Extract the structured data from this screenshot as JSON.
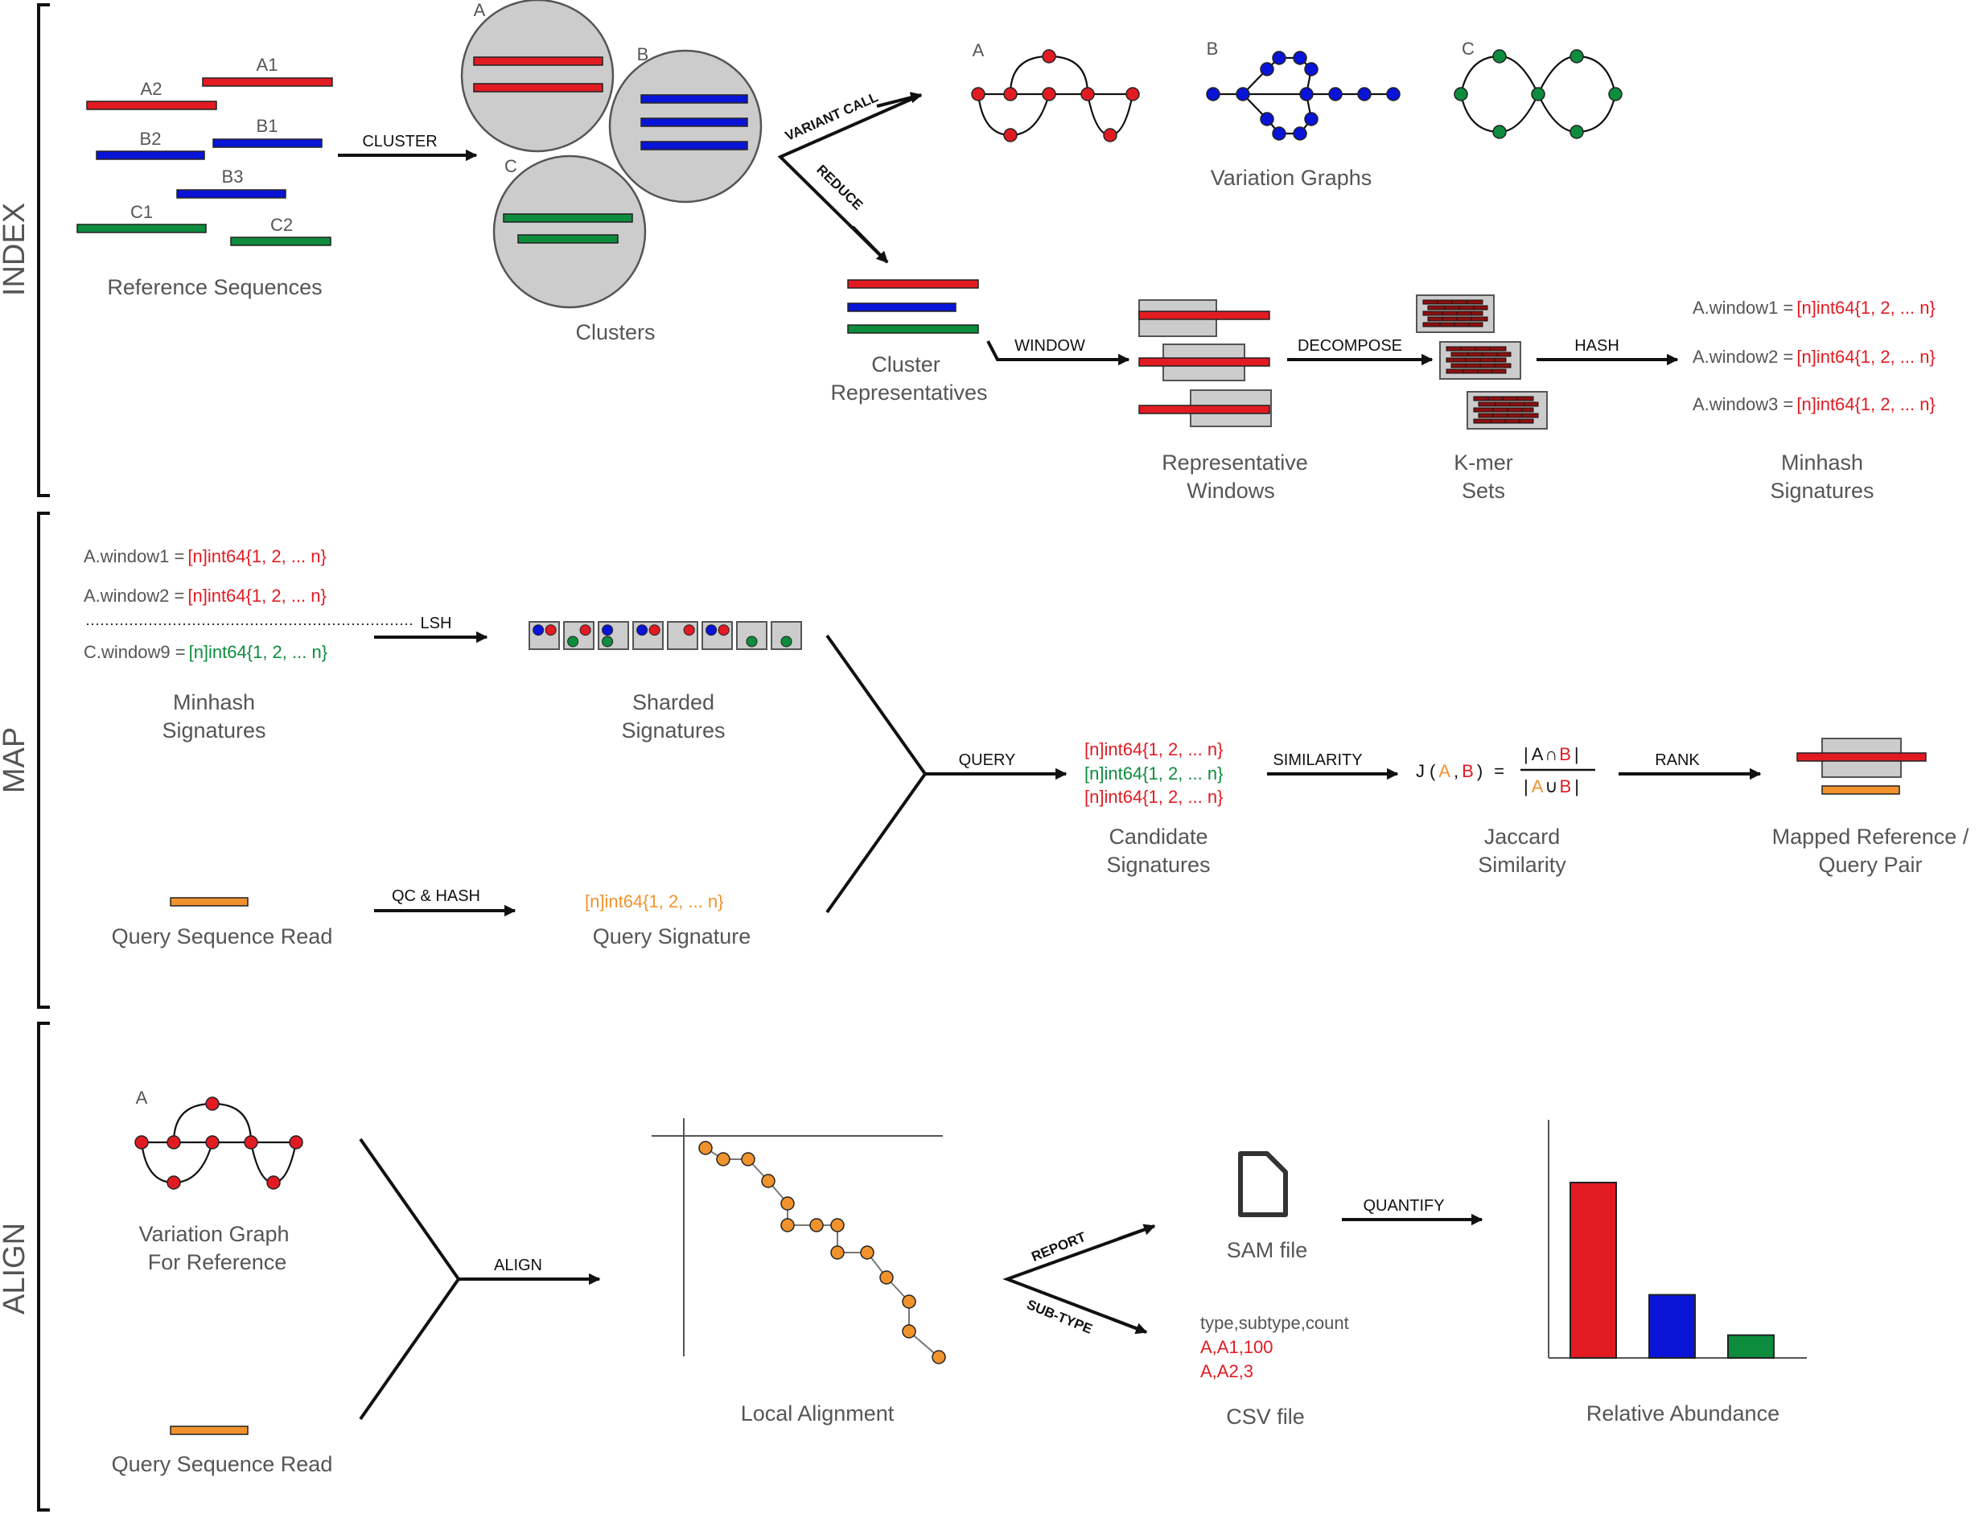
{
  "colors": {
    "red": "#e21b23",
    "blue": "#0a14d6",
    "green": "#0d8c3d",
    "orange": "#f0932d",
    "gray": "#cccccc",
    "darkred": "#8b1010",
    "text": "#555555",
    "black": "#111111"
  },
  "sections": {
    "index": "INDEX",
    "map": "MAP",
    "align": "ALIGN"
  },
  "index": {
    "ref_labels": {
      "a1": "A1",
      "a2": "A2",
      "b1": "B1",
      "b2": "B2",
      "b3": "B3",
      "c1": "C1",
      "c2": "C2"
    },
    "ref_caption": "Reference Sequences",
    "cluster_op": "CLUSTER",
    "cluster_labels": {
      "a": "A",
      "b": "B",
      "c": "C"
    },
    "clusters_caption": "Clusters",
    "variant_call_op": "VARIANT CALL",
    "reduce_op": "REDUCE",
    "graph_labels": {
      "a": "A",
      "b": "B",
      "c": "C"
    },
    "graphs_caption": "Variation Graphs",
    "reps_caption": [
      "Cluster",
      "Representatives"
    ],
    "window_op": "WINDOW",
    "windows_caption": [
      "Representative",
      "Windows"
    ],
    "decompose_op": "DECOMPOSE",
    "kmer_caption": [
      "K-mer",
      "Sets"
    ],
    "hash_op": "HASH",
    "signatures": [
      {
        "name": "A.window1 =",
        "value": "[n]int64{1, 2, ... n}"
      },
      {
        "name": "A.window2 =",
        "value": "[n]int64{1, 2, ... n}"
      },
      {
        "name": "A.window3 =",
        "value": "[n]int64{1, 2, ... n}"
      }
    ],
    "minhash_caption": [
      "Minhash",
      "Signatures"
    ]
  },
  "map": {
    "signatures": [
      {
        "name": "A.window1 =",
        "value": "[n]int64{1, 2, ... n}"
      },
      {
        "name": "A.window2 =",
        "value": "[n]int64{1, 2, ... n}"
      },
      {
        "name": "C.window9 =",
        "value": "[n]int64{1, 2, ... n}"
      }
    ],
    "lsh_op": "LSH",
    "minhash_caption": [
      "Minhash",
      "Signatures"
    ],
    "sharded_caption": [
      "Sharded",
      "Signatures"
    ],
    "query_read_caption": "Query Sequence Read",
    "qc_hash_op": "QC & HASH",
    "query_signature_value": "[n]int64{1, 2, ... n}",
    "query_signature_caption": "Query Signature",
    "query_op": "QUERY",
    "candidates": [
      "[n]int64{1, 2, ... n}",
      "[n]int64{1, 2, ... n}",
      "[n]int64{1, 2, ... n}"
    ],
    "candidate_caption": [
      "Candidate",
      "Signatures"
    ],
    "similarity_op": "SIMILARITY",
    "jaccard": {
      "j": "J",
      "lparen": "(",
      "a": "A",
      "comma": ",",
      "b": "B",
      "rparen": ")",
      "eq": "=",
      "bar": "|",
      "cap": "∩",
      "cup": "∪"
    },
    "jaccard_caption": [
      "Jaccard",
      "Similarity"
    ],
    "rank_op": "RANK",
    "mapped_caption": [
      "Mapped Reference /",
      "Query Pair"
    ]
  },
  "align": {
    "graph_label": "A",
    "graph_caption": [
      "Variation Graph",
      "For Reference"
    ],
    "query_read_caption": "Query Sequence Read",
    "align_op": "ALIGN",
    "local_caption": "Local Alignment",
    "report_op": "REPORT",
    "subtype_op": "SUB-TYPE",
    "sam_caption": "SAM file",
    "quantify_op": "QUANTIFY",
    "csv_rows": [
      "type,subtype,count",
      "A,A1,100",
      "A,A2,3"
    ],
    "csv_caption": "CSV file",
    "abundance_caption": "Relative Abundance",
    "abundance": [
      {
        "color": "red",
        "value": 1.0
      },
      {
        "color": "blue",
        "value": 0.36
      },
      {
        "color": "green",
        "value": 0.13
      }
    ]
  }
}
